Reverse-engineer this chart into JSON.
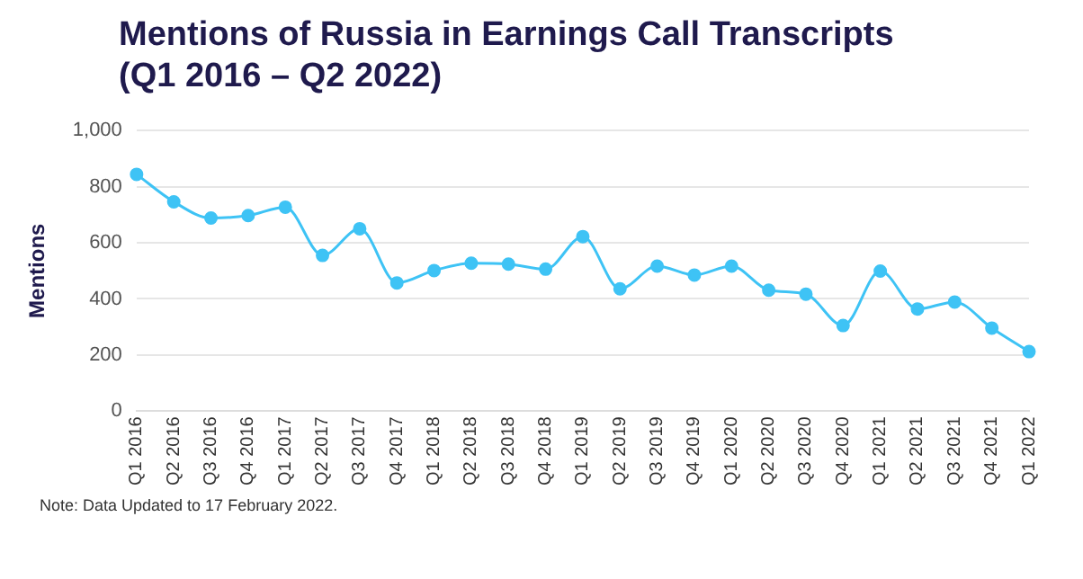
{
  "chart_data": {
    "type": "line",
    "title": "Mentions of Russia in Earnings Call Transcripts\n(Q1 2016 – Q2 2022)",
    "ylabel": "Mentions",
    "categories": [
      "Q1 2016",
      "Q2 2016",
      "Q3 2016",
      "Q4 2016",
      "Q1 2017",
      "Q2 2017",
      "Q3 2017",
      "Q4 2017",
      "Q1 2018",
      "Q2 2018",
      "Q3 2018",
      "Q4 2018",
      "Q1 2019",
      "Q2 2019",
      "Q3 2019",
      "Q4 2019",
      "Q1 2020",
      "Q2 2020",
      "Q3 2020",
      "Q4 2020",
      "Q1 2021",
      "Q2 2021",
      "Q3 2021",
      "Q4 2021",
      "Q1 2022"
    ],
    "series": [
      {
        "color": "#3ec3f5",
        "values": [
          844,
          746,
          688,
          697,
          727,
          555,
          650,
          457,
          501,
          527,
          524,
          506,
          622,
          436,
          517,
          485,
          517,
          431,
          417,
          305,
          499,
          364,
          389,
          296,
          212
        ]
      }
    ],
    "ylim": [
      0,
      1000
    ],
    "yticks": [
      0,
      {
        "value": 200,
        "label": "200"
      },
      {
        "value": 400,
        "label": "400"
      },
      {
        "value": 600,
        "label": "600"
      },
      {
        "value": 800,
        "label": "800"
      },
      {
        "value": 1000,
        "label": "1,000"
      }
    ],
    "grid": "y",
    "legend": false,
    "marker": "circle",
    "line_style": "solid",
    "annotations": [
      "Note: Data Updated to 17 February 2022."
    ]
  }
}
